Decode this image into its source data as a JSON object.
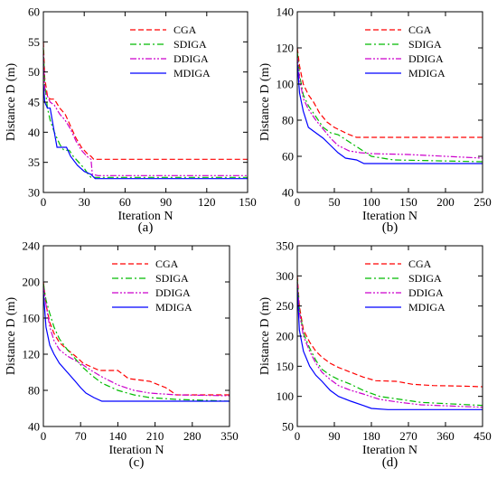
{
  "figure": {
    "captions": [
      "(a)",
      "(b)",
      "(c)",
      "(d)"
    ]
  },
  "series_styles": [
    {
      "name": "CGA",
      "color": "#ff0000",
      "dash": "dashed"
    },
    {
      "name": "SDIGA",
      "color": "#00bb00",
      "dash": "dash-dot"
    },
    {
      "name": "DDIGA",
      "color": "#cc00cc",
      "dash": "dash-dot-dot"
    },
    {
      "name": "MDIGA",
      "color": "#0000ff",
      "dash": "solid"
    }
  ],
  "chart_data": [
    {
      "type": "line",
      "caption": "(a)",
      "xlabel": "Iteration N",
      "ylabel": "Distance D (m)",
      "xlim": [
        0,
        150
      ],
      "ylim": [
        30,
        60
      ],
      "xticks": [
        0,
        30,
        60,
        90,
        120,
        150
      ],
      "yticks": [
        30,
        35,
        40,
        45,
        50,
        55,
        60
      ],
      "legend": "top-right",
      "grid": false,
      "series": [
        {
          "name": "CGA",
          "x": [
            0,
            1,
            3,
            5,
            8,
            12,
            16,
            20,
            24,
            28,
            32,
            35,
            37,
            40,
            150
          ],
          "y": [
            55,
            49,
            46,
            45.5,
            45.5,
            44,
            43,
            41,
            39,
            37.5,
            36.5,
            36,
            35.5,
            35.5,
            35.5
          ]
        },
        {
          "name": "SDIGA",
          "x": [
            0,
            1,
            3,
            5,
            8,
            12,
            15,
            19,
            22,
            26,
            30,
            33,
            35,
            38,
            150
          ],
          "y": [
            54,
            48,
            44,
            42,
            40,
            38,
            37,
            37,
            36,
            35,
            34,
            33,
            32.5,
            32.5,
            32.5
          ]
        },
        {
          "name": "DDIGA",
          "x": [
            0,
            1,
            3,
            5,
            8,
            12,
            16,
            20,
            24,
            28,
            32,
            35,
            36,
            40,
            150
          ],
          "y": [
            53,
            47,
            46,
            45,
            44.5,
            43,
            42,
            40.5,
            38.5,
            37,
            36,
            35.5,
            33,
            32.8,
            32.8
          ]
        },
        {
          "name": "MDIGA",
          "x": [
            0,
            1,
            3,
            5,
            8,
            10,
            13,
            17,
            20,
            25,
            30,
            35,
            38,
            40,
            150
          ],
          "y": [
            48,
            45,
            44,
            44,
            40,
            37.5,
            37.5,
            37.5,
            36,
            34.5,
            33.5,
            33,
            32.3,
            32.3,
            32.3
          ]
        }
      ]
    },
    {
      "type": "line",
      "caption": "(b)",
      "xlabel": "Iteration N",
      "ylabel": "Distance D (m)",
      "xlim": [
        0,
        250
      ],
      "ylim": [
        40,
        140
      ],
      "xticks": [
        0,
        50,
        100,
        150,
        200,
        250
      ],
      "yticks": [
        40,
        60,
        80,
        100,
        120,
        140
      ],
      "legend": "top-right",
      "grid": false,
      "series": [
        {
          "name": "CGA",
          "x": [
            0,
            3,
            8,
            15,
            22,
            30,
            40,
            50,
            60,
            70,
            80,
            250
          ],
          "y": [
            120,
            110,
            100,
            94,
            90,
            84,
            79,
            76,
            74,
            72,
            70.5,
            70.5
          ]
        },
        {
          "name": "SDIGA",
          "x": [
            0,
            3,
            8,
            15,
            25,
            35,
            45,
            55,
            70,
            85,
            100,
            130,
            250
          ],
          "y": [
            118,
            105,
            94,
            88,
            82,
            76,
            73,
            72,
            68,
            64,
            60,
            58,
            57
          ]
        },
        {
          "name": "DDIGA",
          "x": [
            0,
            3,
            8,
            15,
            25,
            35,
            45,
            55,
            70,
            85,
            100,
            150,
            250
          ],
          "y": [
            115,
            103,
            92,
            86,
            80,
            75,
            70,
            66,
            63,
            62,
            61.5,
            61,
            59
          ]
        },
        {
          "name": "MDIGA",
          "x": [
            0,
            3,
            8,
            15,
            25,
            35,
            45,
            55,
            65,
            80,
            90,
            250
          ],
          "y": [
            112,
            95,
            85,
            76,
            73,
            70,
            66,
            62,
            59,
            58,
            56,
            56
          ]
        }
      ]
    },
    {
      "type": "line",
      "caption": "(c)",
      "xlabel": "Iteration N",
      "ylabel": "Distance D (m)",
      "xlim": [
        0,
        350
      ],
      "ylim": [
        40,
        240
      ],
      "xticks": [
        0,
        70,
        140,
        210,
        280,
        350
      ],
      "yticks": [
        40,
        80,
        120,
        160,
        200,
        240
      ],
      "legend": "top-right",
      "grid": false,
      "series": [
        {
          "name": "CGA",
          "x": [
            0,
            5,
            12,
            20,
            30,
            45,
            60,
            75,
            90,
            105,
            140,
            160,
            200,
            230,
            250,
            350
          ],
          "y": [
            200,
            175,
            155,
            143,
            133,
            125,
            118,
            110,
            106,
            102,
            102,
            93,
            90,
            83,
            75,
            75
          ]
        },
        {
          "name": "SDIGA",
          "x": [
            0,
            5,
            12,
            20,
            30,
            45,
            60,
            75,
            90,
            110,
            140,
            170,
            200,
            250,
            350
          ],
          "y": [
            198,
            180,
            165,
            150,
            137,
            125,
            115,
            105,
            97,
            88,
            80,
            75,
            72,
            70,
            68
          ]
        },
        {
          "name": "DDIGA",
          "x": [
            0,
            5,
            12,
            20,
            30,
            45,
            60,
            75,
            90,
            110,
            140,
            170,
            200,
            250,
            350
          ],
          "y": [
            195,
            175,
            150,
            135,
            125,
            118,
            113,
            108,
            102,
            95,
            86,
            80,
            77,
            75,
            74
          ]
        },
        {
          "name": "MDIGA",
          "x": [
            0,
            5,
            12,
            20,
            30,
            45,
            60,
            70,
            80,
            95,
            110,
            350
          ],
          "y": [
            190,
            150,
            130,
            120,
            110,
            100,
            90,
            83,
            77,
            72,
            68,
            68
          ]
        }
      ]
    },
    {
      "type": "line",
      "caption": "(d)",
      "xlabel": "Iteration N",
      "ylabel": "Distance D (m)",
      "xlim": [
        0,
        450
      ],
      "ylim": [
        50,
        350
      ],
      "xticks": [
        0,
        90,
        180,
        270,
        360,
        450
      ],
      "yticks": [
        50,
        100,
        150,
        200,
        250,
        300,
        350
      ],
      "legend": "top-right",
      "grid": false,
      "series": [
        {
          "name": "CGA",
          "x": [
            0,
            5,
            15,
            30,
            45,
            60,
            80,
            100,
            130,
            160,
            190,
            240,
            280,
            330,
            400,
            450
          ],
          "y": [
            300,
            250,
            210,
            190,
            175,
            165,
            155,
            148,
            140,
            132,
            126,
            125,
            120,
            118,
            117,
            116
          ]
        },
        {
          "name": "SDIGA",
          "x": [
            0,
            5,
            15,
            30,
            45,
            60,
            80,
            100,
            130,
            160,
            200,
            250,
            300,
            450
          ],
          "y": [
            295,
            245,
            205,
            180,
            160,
            145,
            135,
            128,
            120,
            110,
            100,
            95,
            90,
            85
          ]
        },
        {
          "name": "DDIGA",
          "x": [
            0,
            5,
            15,
            30,
            45,
            60,
            80,
            100,
            130,
            160,
            200,
            250,
            300,
            450
          ],
          "y": [
            290,
            240,
            200,
            175,
            155,
            140,
            128,
            118,
            110,
            104,
            95,
            90,
            86,
            82
          ]
        },
        {
          "name": "MDIGA",
          "x": [
            0,
            5,
            15,
            30,
            45,
            60,
            80,
            100,
            130,
            160,
            180,
            220,
            450
          ],
          "y": [
            280,
            210,
            175,
            150,
            135,
            125,
            110,
            100,
            92,
            85,
            80,
            78,
            78
          ]
        }
      ]
    }
  ]
}
